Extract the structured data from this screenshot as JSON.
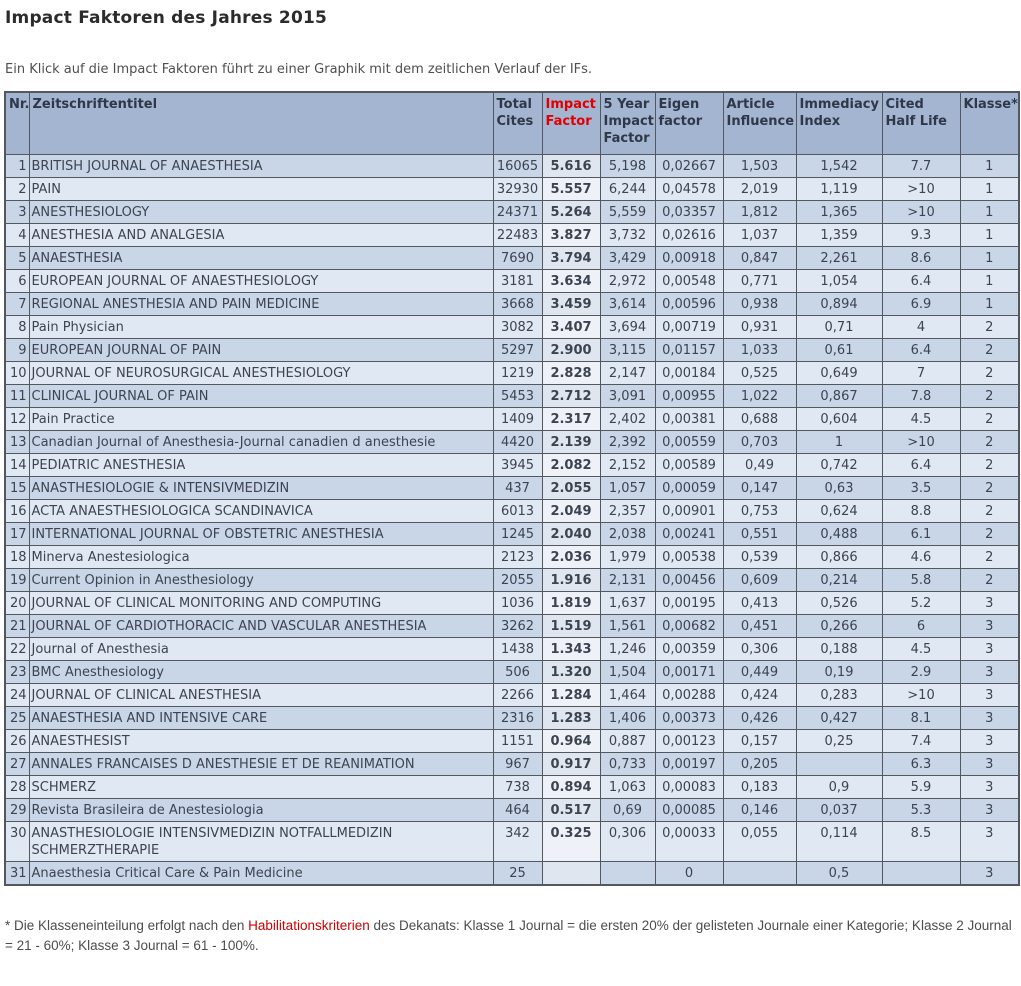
{
  "page": {
    "title": "Impact Faktoren des Jahres 2015",
    "subtitle": "Ein Klick auf die Impact Faktoren führt zu einer Graphik mit dem zeitlichen Verlauf der IFs.",
    "footnote": {
      "prefix": "* Die Klasseneinteilung erfolgt nach den ",
      "link_text": "Habilitationskriterien",
      "suffix": " des Dekanats: Klasse 1 Journal = die ersten 20% der gelisteten Journale einer Kategorie; Klasse 2 Journal = 21 - 60%; Klasse 3 Journal = 61 - 100%."
    }
  },
  "colors": {
    "header_bg": "#a3b5d1",
    "row_dark": "#c9d6e8",
    "row_light": "#e0e8f4",
    "border": "#53575e",
    "impact_factor_red": "#cc0000",
    "link_red": "#cc0000"
  },
  "table": {
    "columns": [
      "Nr.",
      "Zeitschriftentitel",
      "Total Cites",
      "Impact Factor",
      "5 Year Impact Factor",
      "Eigen factor",
      "Article Influence",
      "Immediacy Index",
      "Cited Half Life",
      "Klasse*"
    ],
    "rows": [
      [
        "1",
        "BRITISH JOURNAL OF ANAESTHESIA",
        "16065",
        "5.616",
        "5,198",
        "0,02667",
        "1,503",
        "1,542",
        "7.7",
        "1"
      ],
      [
        "2",
        "PAIN",
        "32930",
        "5.557",
        "6,244",
        "0,04578",
        "2,019",
        "1,119",
        ">10",
        "1"
      ],
      [
        "3",
        "ANESTHESIOLOGY",
        "24371",
        "5.264",
        "5,559",
        "0,03357",
        "1,812",
        "1,365",
        ">10",
        "1"
      ],
      [
        "4",
        "ANESTHESIA AND ANALGESIA",
        "22483",
        "3.827",
        "3,732",
        "0,02616",
        "1,037",
        "1,359",
        "9.3",
        "1"
      ],
      [
        "5",
        "ANAESTHESIA",
        "7690",
        "3.794",
        "3,429",
        "0,00918",
        "0,847",
        "2,261",
        "8.6",
        "1"
      ],
      [
        "6",
        "EUROPEAN JOURNAL OF ANAESTHESIOLOGY",
        "3181",
        "3.634",
        "2,972",
        "0,00548",
        "0,771",
        "1,054",
        "6.4",
        "1"
      ],
      [
        "7",
        "REGIONAL ANESTHESIA AND PAIN MEDICINE",
        "3668",
        "3.459",
        "3,614",
        "0,00596",
        "0,938",
        "0,894",
        "6.9",
        "1"
      ],
      [
        "8",
        "Pain Physician",
        "3082",
        "3.407",
        "3,694",
        "0,00719",
        "0,931",
        "0,71",
        "4",
        "2"
      ],
      [
        "9",
        "EUROPEAN JOURNAL OF PAIN",
        "5297",
        "2.900",
        "3,115",
        "0,01157",
        "1,033",
        "0,61",
        "6.4",
        "2"
      ],
      [
        "10",
        "JOURNAL OF NEUROSURGICAL ANESTHESIOLOGY",
        "1219",
        "2.828",
        "2,147",
        "0,00184",
        "0,525",
        "0,649",
        "7",
        "2"
      ],
      [
        "11",
        "CLINICAL JOURNAL OF PAIN",
        "5453",
        "2.712",
        "3,091",
        "0,00955",
        "1,022",
        "0,867",
        "7.8",
        "2"
      ],
      [
        "12",
        "Pain Practice",
        "1409",
        "2.317",
        "2,402",
        "0,00381",
        "0,688",
        "0,604",
        "4.5",
        "2"
      ],
      [
        "13",
        "Canadian Journal of Anesthesia-Journal canadien d anesthesie",
        "4420",
        "2.139",
        "2,392",
        "0,00559",
        "0,703",
        "1",
        ">10",
        "2"
      ],
      [
        "14",
        "PEDIATRIC ANESTHESIA",
        "3945",
        "2.082",
        "2,152",
        "0,00589",
        "0,49",
        "0,742",
        "6.4",
        "2"
      ],
      [
        "15",
        "ANASTHESIOLOGIE & INTENSIVMEDIZIN",
        "437",
        "2.055",
        "1,057",
        "0,00059",
        "0,147",
        "0,63",
        "3.5",
        "2"
      ],
      [
        "16",
        "ACTA ANAESTHESIOLOGICA SCANDINAVICA",
        "6013",
        "2.049",
        "2,357",
        "0,00901",
        "0,753",
        "0,624",
        "8.8",
        "2"
      ],
      [
        "17",
        "INTERNATIONAL JOURNAL OF OBSTETRIC ANESTHESIA",
        "1245",
        "2.040",
        "2,038",
        "0,00241",
        "0,551",
        "0,488",
        "6.1",
        "2"
      ],
      [
        "18",
        "Minerva Anestesiologica",
        "2123",
        "2.036",
        "1,979",
        "0,00538",
        "0,539",
        "0,866",
        "4.6",
        "2"
      ],
      [
        "19",
        "Current Opinion in Anesthesiology",
        "2055",
        "1.916",
        "2,131",
        "0,00456",
        "0,609",
        "0,214",
        "5.8",
        "2"
      ],
      [
        "20",
        "JOURNAL OF CLINICAL MONITORING AND COMPUTING",
        "1036",
        "1.819",
        "1,637",
        "0,00195",
        "0,413",
        "0,526",
        "5.2",
        "3"
      ],
      [
        "21",
        "JOURNAL OF CARDIOTHORACIC AND VASCULAR ANESTHESIA",
        "3262",
        "1.519",
        "1,561",
        "0,00682",
        "0,451",
        "0,266",
        "6",
        "3"
      ],
      [
        "22",
        "Journal of Anesthesia",
        "1438",
        "1.343",
        "1,246",
        "0,00359",
        "0,306",
        "0,188",
        "4.5",
        "3"
      ],
      [
        "23",
        "BMC Anesthesiology",
        "506",
        "1.320",
        "1,504",
        "0,00171",
        "0,449",
        "0,19",
        "2.9",
        "3"
      ],
      [
        "24",
        "JOURNAL OF CLINICAL ANESTHESIA",
        "2266",
        "1.284",
        "1,464",
        "0,00288",
        "0,424",
        "0,283",
        ">10",
        "3"
      ],
      [
        "25",
        "ANAESTHESIA AND INTENSIVE CARE",
        "2316",
        "1.283",
        "1,406",
        "0,00373",
        "0,426",
        "0,427",
        "8.1",
        "3"
      ],
      [
        "26",
        "ANAESTHESIST",
        "1151",
        "0.964",
        "0,887",
        "0,00123",
        "0,157",
        "0,25",
        "7.4",
        "3"
      ],
      [
        "27",
        "ANNALES FRANCAISES D ANESTHESIE ET DE REANIMATION",
        "967",
        "0.917",
        "0,733",
        "0,00197",
        "0,205",
        "",
        "6.3",
        "3"
      ],
      [
        "28",
        "SCHMERZ",
        "738",
        "0.894",
        "1,063",
        "0,00083",
        "0,183",
        "0,9",
        "5.9",
        "3"
      ],
      [
        "29",
        "Revista Brasileira de Anestesiologia",
        "464",
        "0.517",
        "0,69",
        "0,00085",
        "0,146",
        "0,037",
        "5.3",
        "3"
      ],
      [
        "30",
        "ANASTHESIOLOGIE INTENSIVMEDIZIN NOTFALLMEDIZIN SCHMERZTHERAPIE",
        "342",
        "0.325",
        "0,306",
        "0,00033",
        "0,055",
        "0,114",
        "8.5",
        "3"
      ],
      [
        "31",
        "Anaesthesia Critical Care & Pain Medicine",
        "25",
        "",
        "",
        "0",
        "",
        "0,5",
        "",
        "3"
      ]
    ]
  }
}
